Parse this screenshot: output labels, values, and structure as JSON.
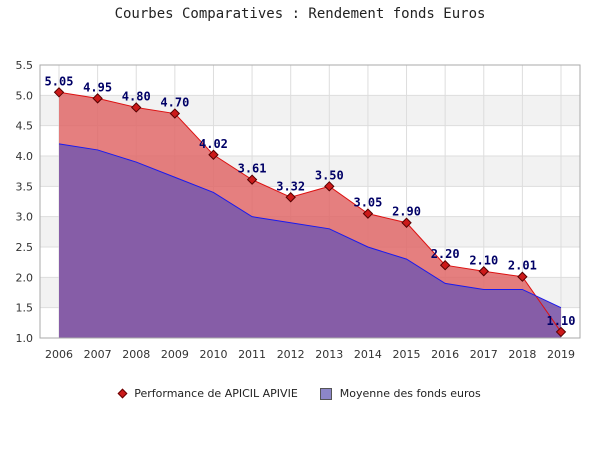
{
  "chart_data": {
    "type": "area",
    "title": "Courbes Comparatives : Rendement fonds Euros",
    "categories": [
      "2006",
      "2007",
      "2008",
      "2009",
      "2010",
      "2011",
      "2012",
      "2013",
      "2014",
      "2015",
      "2016",
      "2017",
      "2018",
      "2019"
    ],
    "series": [
      {
        "name": "Performance de APICIL APIVIE",
        "values": [
          5.05,
          4.95,
          4.8,
          4.7,
          4.02,
          3.61,
          3.32,
          3.5,
          3.05,
          2.9,
          2.2,
          2.1,
          2.01,
          1.1
        ],
        "labels": [
          "5.05",
          "4.95",
          "4.80",
          "4.70",
          "4.02",
          "3.61",
          "3.32",
          "3.50",
          "3.05",
          "2.90",
          "2.20",
          "2.10",
          "2.01",
          "1.10"
        ],
        "color": "#e06868",
        "line_color": "#dd1111"
      },
      {
        "name": "Moyenne des fonds euros",
        "values": [
          4.2,
          4.1,
          3.9,
          3.65,
          3.4,
          3.0,
          2.9,
          2.8,
          2.5,
          2.3,
          1.9,
          1.8,
          1.8,
          1.5
        ],
        "color": "#7e5aaa",
        "line_color": "#1a1aee"
      }
    ],
    "yticks": [
      "1.0",
      "1.5",
      "2.0",
      "2.5",
      "3.0",
      "3.5",
      "4.0",
      "4.5",
      "5.0",
      "5.5"
    ],
    "ylim": [
      1.0,
      5.5
    ],
    "grid": true,
    "legend_position": "bottom"
  }
}
